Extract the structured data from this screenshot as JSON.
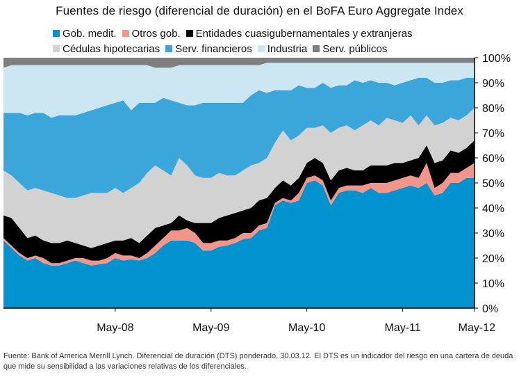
{
  "title": "Fuentes de riesgo (diferencial de duración) en el BoFA Euro Aggregate Index",
  "footnote": "Fuente: Bank of America Merrill Lynch. Diferencial de duración (DTS) ponderado, 30.03.12. El DTS es un indicador del riesgo en una cartera de deuda que mide su sensibilidad a las variaciones relativas de los diferenciales.",
  "legend_rows": [
    [
      {
        "name": "Gob. medit.",
        "color": "#0093cf"
      },
      {
        "name": "Otros gob.",
        "color": "#f4958c"
      },
      {
        "name": "Entidades cuasigubernamentales y extranjeras",
        "color": "#000000"
      }
    ],
    [
      {
        "name": "Cédulas hipotecarias",
        "color": "#d2d2d2"
      },
      {
        "name": "Serv. financieros",
        "color": "#3aa6da"
      },
      {
        "name": "Industria",
        "color": "#cce6f2"
      },
      {
        "name": "Serv. públicos",
        "color": "#7f7f7f"
      }
    ]
  ],
  "chart_data": {
    "type": "area",
    "stacked": true,
    "x_tick_labels": [
      "May-08",
      "May-09",
      "May-10",
      "May-11",
      "May-12"
    ],
    "x_tick_positions": [
      14,
      26,
      38,
      50,
      59
    ],
    "y_range": [
      0,
      100
    ],
    "y_ticks": [
      "0%",
      "10%",
      "20%",
      "30%",
      "40%",
      "50%",
      "60%",
      "70%",
      "80%",
      "90%",
      "100%"
    ],
    "y_axis_side": "right",
    "grid": false,
    "legend_position": "top",
    "x_index": [
      0,
      1,
      2,
      3,
      4,
      5,
      6,
      7,
      8,
      9,
      10,
      11,
      12,
      13,
      14,
      15,
      16,
      17,
      18,
      19,
      20,
      21,
      22,
      23,
      24,
      25,
      26,
      27,
      28,
      29,
      30,
      31,
      32,
      33,
      34,
      35,
      36,
      37,
      38,
      39,
      40,
      41,
      42,
      43,
      44,
      45,
      46,
      47,
      48,
      49,
      50,
      51,
      52,
      53,
      54,
      55,
      56,
      57,
      58,
      59
    ],
    "cumulative_top": {
      "Gob. medit.": [
        27,
        24,
        21,
        19,
        20,
        18,
        17,
        17,
        18,
        19,
        18,
        17,
        17.5,
        18,
        20,
        19,
        19.5,
        19,
        20,
        22,
        25,
        27,
        27,
        27,
        26,
        23,
        23,
        24.5,
        25,
        26,
        27.5,
        28,
        31,
        32,
        41,
        43,
        42,
        43,
        50,
        51,
        49,
        41,
        46,
        47,
        47,
        46,
        48,
        46,
        46,
        47,
        48,
        49,
        48,
        50,
        45,
        46,
        50,
        50,
        52,
        52
      ],
      "Otros gob.": [
        28,
        25,
        22,
        20,
        21,
        20,
        18,
        18,
        19,
        20,
        20,
        19,
        19,
        20,
        22,
        21,
        21,
        20,
        22,
        25,
        28,
        31,
        31,
        32,
        30,
        26,
        26,
        27,
        27,
        28,
        30,
        30,
        33,
        34,
        42,
        44,
        43,
        46,
        52,
        53,
        51,
        43,
        48,
        49,
        49,
        49,
        50,
        50,
        50,
        51,
        52,
        53,
        52,
        58,
        48,
        50,
        54,
        54,
        56,
        58
      ],
      "Entidades cuasigubernamentales y extranjeras": [
        37,
        36,
        32,
        28,
        29,
        27,
        26,
        26,
        27,
        26,
        25,
        24,
        25,
        26,
        27,
        27,
        28,
        26,
        29,
        32,
        33,
        34,
        37,
        35,
        34,
        34,
        34,
        36,
        37,
        38,
        39,
        40,
        43,
        44,
        48,
        51,
        49,
        52,
        58,
        60,
        58,
        51,
        55,
        56,
        55,
        55,
        57,
        57,
        57,
        58,
        58,
        59,
        60,
        65,
        58,
        59,
        63,
        62,
        64,
        67
      ],
      "Cédulas hipotecarias": [
        55,
        53,
        50,
        47,
        48,
        47,
        46,
        45,
        44,
        44,
        45,
        46,
        46,
        46,
        48,
        46,
        48,
        50,
        54,
        57,
        55,
        53,
        60,
        57,
        53,
        52,
        52,
        54,
        53,
        53,
        55,
        57,
        58,
        60,
        66,
        71,
        67,
        69,
        72,
        72,
        73,
        70,
        72,
        73,
        71,
        73,
        75,
        73,
        76,
        75,
        74,
        77,
        73,
        77,
        73,
        74,
        76,
        75,
        77,
        80
      ],
      "Serv. financieros": [
        78,
        78,
        78,
        77,
        78,
        78,
        76,
        77,
        77,
        77,
        78,
        79,
        80,
        81,
        82,
        83,
        79,
        82,
        82,
        82,
        84,
        83,
        82,
        81,
        81,
        82,
        82,
        82,
        82,
        82,
        82,
        85,
        87,
        86,
        87,
        87,
        87,
        89,
        88,
        88,
        90,
        88,
        89,
        89,
        91,
        90,
        91,
        90,
        90,
        89,
        90,
        91,
        92,
        92,
        90,
        90,
        91,
        91,
        92,
        92
      ],
      "Industria": [
        96,
        97,
        97,
        97,
        97,
        97,
        97,
        97,
        97,
        97,
        97,
        97,
        97,
        97,
        97,
        97,
        97,
        97,
        97,
        96,
        96,
        96,
        97,
        97,
        97,
        97,
        97,
        97,
        97,
        97,
        97,
        97,
        97,
        98,
        98,
        98,
        98,
        98,
        98,
        98,
        98,
        98,
        98,
        98,
        98,
        98,
        98,
        98,
        98,
        98,
        98,
        98,
        98,
        98,
        98,
        98,
        98,
        98,
        98,
        98
      ],
      "Serv. públicos": [
        100,
        100,
        100,
        100,
        100,
        100,
        100,
        100,
        100,
        100,
        100,
        100,
        100,
        100,
        100,
        100,
        100,
        100,
        100,
        100,
        100,
        100,
        100,
        100,
        100,
        100,
        100,
        100,
        100,
        100,
        100,
        100,
        100,
        100,
        100,
        100,
        100,
        100,
        100,
        100,
        100,
        100,
        100,
        100,
        100,
        100,
        100,
        100,
        100,
        100,
        100,
        100,
        100,
        100,
        100,
        100,
        100,
        100,
        100,
        100
      ]
    },
    "series_order_bottom_to_top": [
      "Gob. medit.",
      "Otros gob.",
      "Entidades cuasigubernamentales y extranjeras",
      "Cédulas hipotecarias",
      "Serv. financieros",
      "Industria",
      "Serv. públicos"
    ],
    "series_colors": {
      "Gob. medit.": "#0093cf",
      "Otros gob.": "#f4958c",
      "Entidades cuasigubernamentales y extranjeras": "#000000",
      "Cédulas hipotecarias": "#d2d2d2",
      "Serv. financieros": "#3aa6da",
      "Industria": "#cce6f2",
      "Serv. públicos": "#7f7f7f"
    },
    "axis_color": "#000000"
  }
}
